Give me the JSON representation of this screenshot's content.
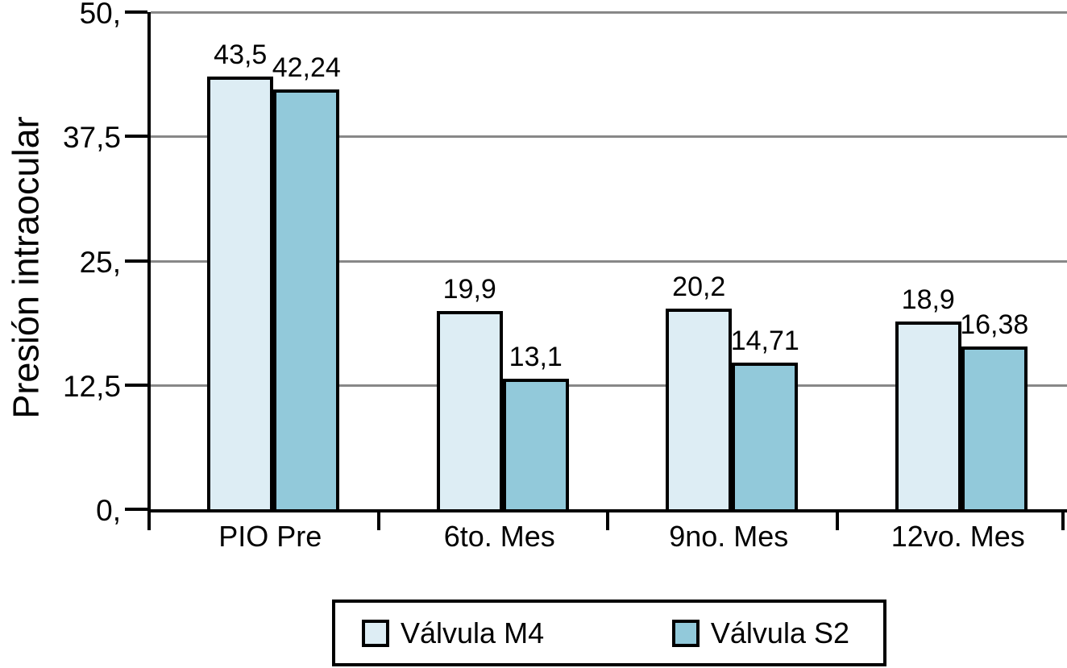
{
  "chart_data": {
    "type": "bar",
    "title": "",
    "xlabel": "",
    "ylabel": "Presión intraocular",
    "categories": [
      "PIO Pre",
      "6to. Mes",
      "9no. Mes",
      "12vo. Mes"
    ],
    "series": [
      {
        "name": "Válvula M4",
        "color": "#ddedf4",
        "values": [
          43.5,
          19.9,
          20.2,
          18.9
        ],
        "value_labels": [
          "43,5",
          "19,9",
          "20,2",
          "18,9"
        ]
      },
      {
        "name": "Válvula S2",
        "color": "#92c9da",
        "values": [
          42.24,
          13.1,
          14.71,
          16.38
        ],
        "value_labels": [
          "42,24",
          "13,1",
          "14,71",
          "16,38"
        ]
      }
    ],
    "ylim": [
      0,
      50
    ],
    "y_ticks": [
      {
        "value": 0,
        "label": "0,"
      },
      {
        "value": 12.5,
        "label": "12,5"
      },
      {
        "value": 25,
        "label": "25,"
      },
      {
        "value": 37.5,
        "label": "37,5"
      },
      {
        "value": 50,
        "label": "50,"
      }
    ],
    "grid": true,
    "gridline_color": "#888888",
    "axis_color": "#000000",
    "legend_position": "bottom"
  }
}
